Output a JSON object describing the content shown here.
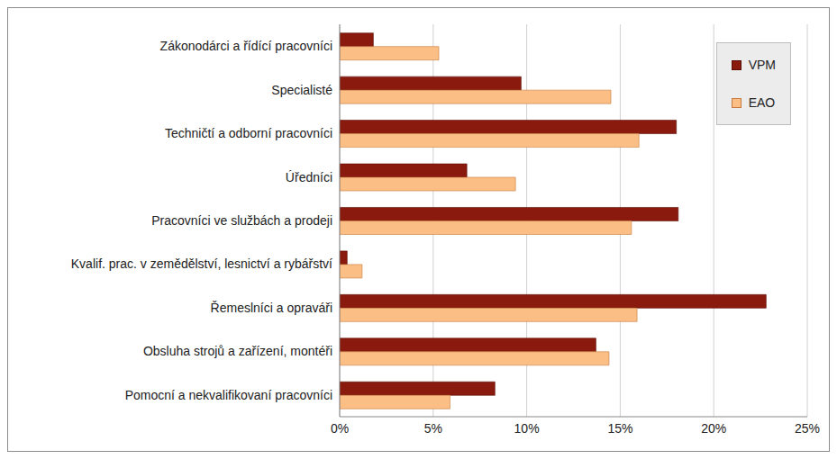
{
  "chart_data": {
    "type": "bar",
    "orientation": "horizontal",
    "categories": [
      "Zákonodárci a řídící pracovníci",
      "Specialisté",
      "Techničtí a odborní pracovníci",
      "Úředníci",
      "Pracovníci ve službách a prodeji",
      "Kvalif. prac. v zemědělství, lesnictví a rybářství",
      "Řemeslníci a opraváři",
      "Obsluha strojů a zařízení, montéři",
      "Pomocní a nekvalifikovaní pracovníci"
    ],
    "series": [
      {
        "name": "VPM",
        "color": "#8b1a0e",
        "values": [
          1.8,
          9.7,
          18.0,
          6.8,
          18.1,
          0.4,
          22.8,
          13.7,
          8.3
        ]
      },
      {
        "name": "EAO",
        "color": "#fbbf86",
        "values": [
          5.3,
          14.5,
          16.0,
          9.4,
          15.6,
          1.2,
          15.9,
          14.4,
          5.9
        ]
      }
    ],
    "xlim": [
      0,
      25
    ],
    "xticks": [
      {
        "value": 0,
        "label": "0%"
      },
      {
        "value": 5,
        "label": "5%"
      },
      {
        "value": 10,
        "label": "10%"
      },
      {
        "value": 15,
        "label": "15%"
      },
      {
        "value": 20,
        "label": "20%"
      },
      {
        "value": 25,
        "label": "25%"
      }
    ],
    "grid": true,
    "legend": "top-right"
  }
}
